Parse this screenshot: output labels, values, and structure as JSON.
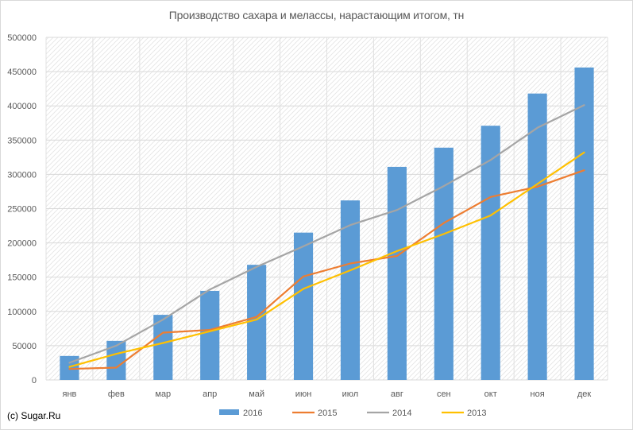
{
  "chart_data": {
    "type": "bar",
    "title": "Производство сахара и мелассы, нарастающим итогом, тн",
    "categories": [
      "янв",
      "фев",
      "мар",
      "апр",
      "май",
      "июн",
      "июл",
      "авг",
      "сен",
      "окт",
      "ноя",
      "дек"
    ],
    "ylim": [
      0,
      500000
    ],
    "yticks": [
      0,
      50000,
      100000,
      150000,
      200000,
      250000,
      300000,
      350000,
      400000,
      450000,
      500000
    ],
    "grid": true,
    "legend_position": "bottom",
    "series": [
      {
        "name": "2016",
        "type": "bar",
        "color": "#5b9bd5",
        "values": [
          35000,
          57000,
          95000,
          130000,
          168000,
          215000,
          262000,
          311000,
          339000,
          371000,
          418000,
          456000
        ]
      },
      {
        "name": "2015",
        "type": "line",
        "color": "#ed7d31",
        "values": [
          16000,
          18000,
          69000,
          73000,
          92000,
          151000,
          170000,
          181000,
          229000,
          267000,
          282000,
          306000
        ]
      },
      {
        "name": "2014",
        "type": "line",
        "color": "#a5a5a5",
        "values": [
          25000,
          50000,
          88000,
          132000,
          165000,
          195000,
          226000,
          248000,
          283000,
          321000,
          368000,
          401000
        ]
      },
      {
        "name": "2013",
        "type": "line",
        "color": "#ffc000",
        "values": [
          19000,
          38000,
          54000,
          71000,
          88000,
          133000,
          160000,
          188000,
          213000,
          240000,
          286000,
          332000
        ]
      }
    ]
  },
  "footer": {
    "copyright": "(c) Sugar.Ru"
  }
}
